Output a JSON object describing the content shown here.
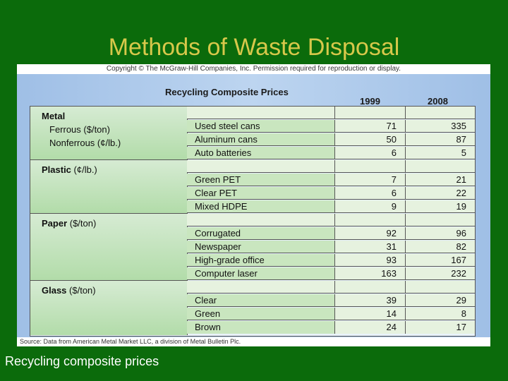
{
  "slide": {
    "title": "Methods of Waste Disposal",
    "caption": "Recycling composite prices"
  },
  "figure": {
    "copyright": "Copyright © The McGraw-Hill Companies, Inc. Permission required for reproduction or display.",
    "table_title": "Recycling Composite Prices",
    "col_1999": "1999",
    "col_2008": "2008",
    "source": "Source: Data from American Metal Market LLC, a division of Metal Bulletin Plc.",
    "sections": [
      {
        "label": "Metal",
        "subs": [
          "Ferrous ($/ton)",
          "Nonferrous (¢/lb.)"
        ]
      },
      {
        "label": "Plastic",
        "unit": " (¢/lb.)"
      },
      {
        "label": "Paper",
        "unit": " ($/ton)"
      },
      {
        "label": "Glass",
        "unit": " ($/ton)"
      }
    ],
    "rows": [
      {
        "item": "Used steel cans",
        "y1999": "71",
        "y2008": "335"
      },
      {
        "item": "Aluminum cans",
        "y1999": "50",
        "y2008": "87"
      },
      {
        "item": "Auto batteries",
        "y1999": "6",
        "y2008": "5"
      },
      {
        "item": "Green PET",
        "y1999": "7",
        "y2008": "21"
      },
      {
        "item": "Clear PET",
        "y1999": "6",
        "y2008": "22"
      },
      {
        "item": "Mixed HDPE",
        "y1999": "9",
        "y2008": "19"
      },
      {
        "item": "Corrugated",
        "y1999": "92",
        "y2008": "96"
      },
      {
        "item": "Newspaper",
        "y1999": "31",
        "y2008": "82"
      },
      {
        "item": "High-grade office",
        "y1999": "93",
        "y2008": "167"
      },
      {
        "item": "Computer laser",
        "y1999": "163",
        "y2008": "232"
      },
      {
        "item": "Clear",
        "y1999": "39",
        "y2008": "29"
      },
      {
        "item": "Green",
        "y1999": "14",
        "y2008": "8"
      },
      {
        "item": "Brown",
        "y1999": "24",
        "y2008": "17"
      }
    ]
  }
}
